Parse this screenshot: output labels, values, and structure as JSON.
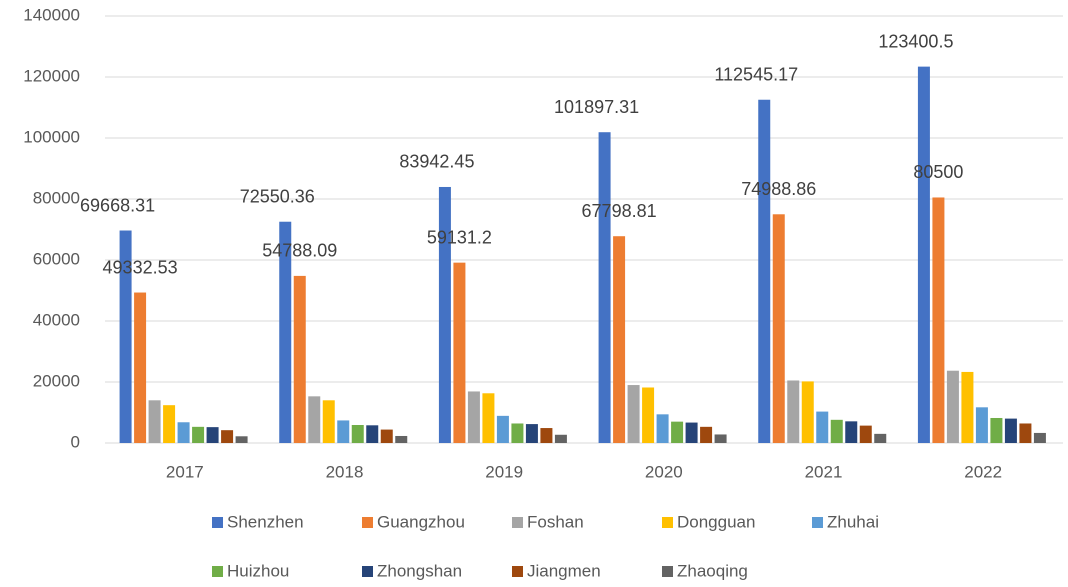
{
  "chart_data": {
    "type": "bar",
    "categories": [
      "2017",
      "2018",
      "2019",
      "2020",
      "2021",
      "2022"
    ],
    "series": [
      {
        "name": "Shenzhen",
        "color": "#4472c4",
        "values": [
          69668.31,
          72550.36,
          83942.45,
          101897.31,
          112545.17,
          123400.5
        ],
        "data_labels": true
      },
      {
        "name": "Guangzhou",
        "color": "#ed7d31",
        "values": [
          49332.53,
          54788.09,
          59131.2,
          67798.81,
          74988.86,
          80500
        ],
        "data_labels": true
      },
      {
        "name": "Foshan",
        "color": "#a5a5a5",
        "values": [
          14000,
          15300,
          16900,
          19000,
          20500,
          23700
        ]
      },
      {
        "name": "Dongguan",
        "color": "#ffc000",
        "values": [
          12400,
          14000,
          16300,
          18200,
          20200,
          23300
        ]
      },
      {
        "name": "Zhuhai",
        "color": "#5b9bd5",
        "values": [
          6800,
          7400,
          8900,
          9400,
          10300,
          11700
        ]
      },
      {
        "name": "Huizhou",
        "color": "#70ad47",
        "values": [
          5300,
          5900,
          6400,
          7000,
          7600,
          8200
        ]
      },
      {
        "name": "Zhongshan",
        "color": "#264478",
        "values": [
          5200,
          5800,
          6200,
          6700,
          7100,
          8000
        ]
      },
      {
        "name": "Jiangmen",
        "color": "#9e480e",
        "values": [
          4200,
          4400,
          4900,
          5300,
          5700,
          6400
        ]
      },
      {
        "name": "Zhaoqing",
        "color": "#636363",
        "values": [
          2200,
          2300,
          2700,
          2800,
          3000,
          3300
        ]
      }
    ],
    "ylim": [
      0,
      140000
    ],
    "yticks": [
      0,
      20000,
      40000,
      60000,
      80000,
      100000,
      120000,
      140000
    ],
    "grid": true,
    "legend": "bottom"
  }
}
